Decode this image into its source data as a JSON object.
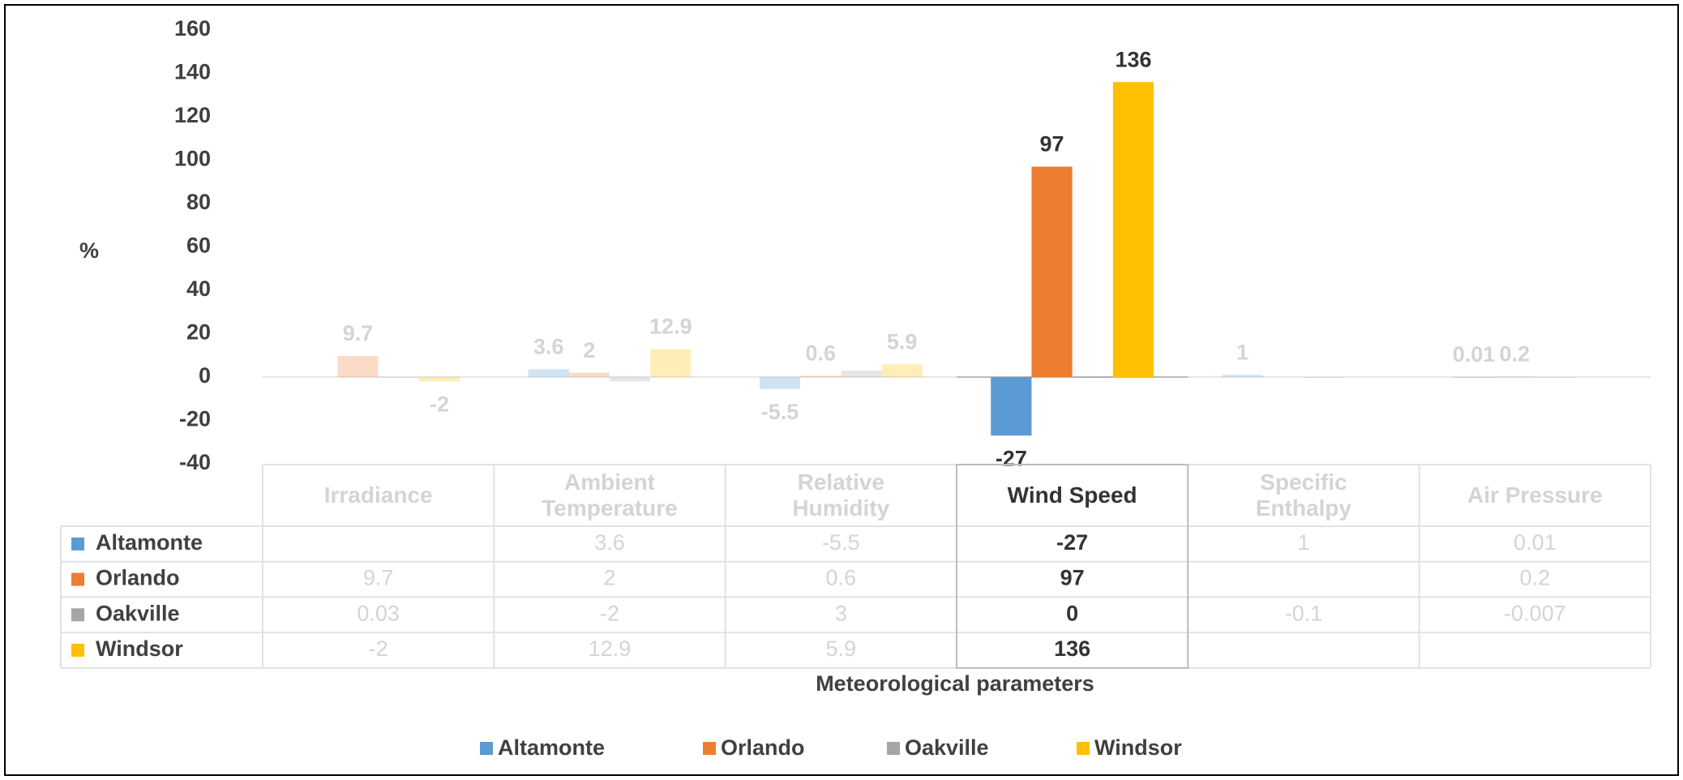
{
  "chart_data": {
    "type": "bar",
    "y_label": "%",
    "x_label": "Meteorological parameters",
    "categories": [
      "Irradiance",
      "Ambient Temperature",
      "Relative Humidity",
      "Wind Speed",
      "Specific Enthalpy",
      "Air Pressure"
    ],
    "highlight": "Wind Speed",
    "series": [
      {
        "name": "Altamonte",
        "color": "#5b9bd5",
        "data_labels": true,
        "values": [
          null,
          3.6,
          -5.5,
          -27,
          1,
          0.01
        ]
      },
      {
        "name": "Orlando",
        "color": "#ed7d31",
        "data_labels": true,
        "values": [
          9.7,
          2,
          0.6,
          97,
          null,
          0.2
        ]
      },
      {
        "name": "Oakville",
        "color": "#a5a5a5",
        "data_labels": false,
        "values": [
          0.03,
          -2,
          3,
          0,
          -0.1,
          -0.007
        ]
      },
      {
        "name": "Windsor",
        "color": "#ffc000",
        "data_labels": true,
        "values": [
          -2,
          12.9,
          5.9,
          136,
          null,
          null
        ]
      }
    ],
    "ylim": [
      -40,
      160
    ],
    "yticks": [
      -40,
      -20,
      0,
      20,
      40,
      60,
      80,
      100,
      120,
      140,
      160
    ],
    "grid": false
  }
}
